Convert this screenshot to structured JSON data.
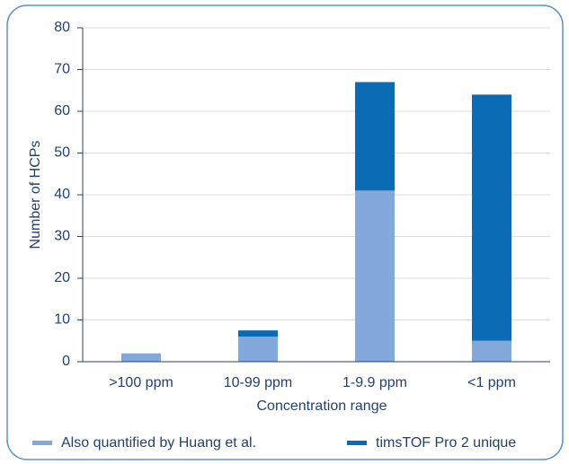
{
  "chart_data": {
    "type": "stacked_bar",
    "x_label": "Concentration range",
    "y_label": "Number of HCPs",
    "categories": [
      ">100 ppm",
      "10-99 ppm",
      "1-9.9 ppm",
      "<1 ppm"
    ],
    "series": [
      {
        "name": "Also quantified by Huang et al.",
        "color": "#82a9da",
        "values": [
          2,
          6,
          41,
          5
        ]
      },
      {
        "name": "timsTOF Pro 2 unique",
        "color": "#0b6bb4",
        "values": [
          0,
          1.5,
          26,
          59
        ]
      }
    ],
    "ylim": [
      0,
      80
    ],
    "yticks": [
      0,
      10,
      20,
      30,
      40,
      50,
      60,
      70,
      80
    ],
    "grid": true,
    "legend": "bottom"
  }
}
